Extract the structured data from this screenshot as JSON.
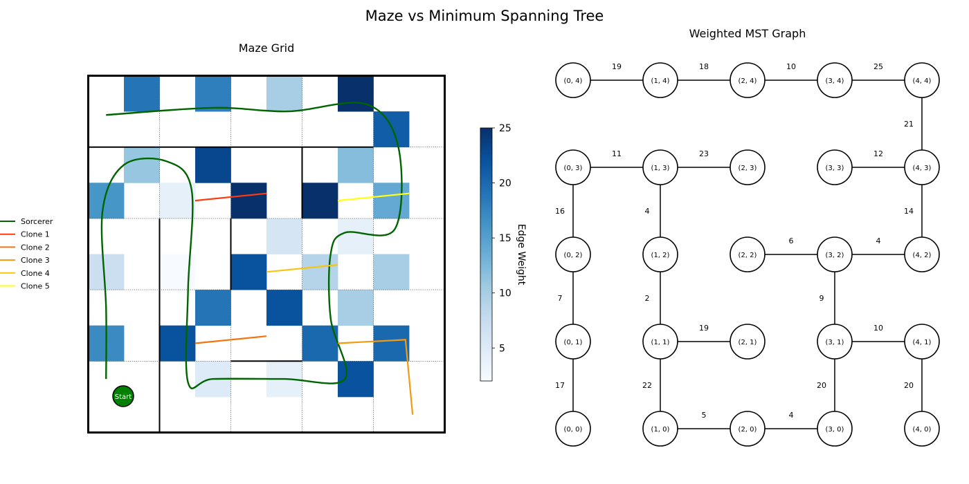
{
  "figure": {
    "title": "Maze vs Minimum Spanning Tree"
  },
  "chart_data": [
    {
      "type": "heatmap",
      "title": "Maze Grid",
      "grid_size": 10,
      "cells": [
        {
          "col": 1,
          "row": 0,
          "value": 19
        },
        {
          "col": 3,
          "row": 0,
          "value": 18
        },
        {
          "col": 5,
          "row": 0,
          "value": 10
        },
        {
          "col": 7,
          "row": 0,
          "value": 25
        },
        {
          "col": 8,
          "row": 1,
          "value": 21
        },
        {
          "col": 1,
          "row": 2,
          "value": 11
        },
        {
          "col": 3,
          "row": 2,
          "value": 23
        },
        {
          "col": 7,
          "row": 2,
          "value": 12
        },
        {
          "col": 0,
          "row": 3,
          "value": 16
        },
        {
          "col": 2,
          "row": 3,
          "value": 4
        },
        {
          "col": 4,
          "row": 3,
          "value": 25
        },
        {
          "col": 6,
          "row": 3,
          "value": 25
        },
        {
          "col": 8,
          "row": 3,
          "value": 14
        },
        {
          "col": 5,
          "row": 4,
          "value": 6
        },
        {
          "col": 7,
          "row": 4,
          "value": 4
        },
        {
          "col": 0,
          "row": 5,
          "value": 7
        },
        {
          "col": 2,
          "row": 5,
          "value": 2
        },
        {
          "col": 4,
          "row": 5,
          "value": 22
        },
        {
          "col": 6,
          "row": 5,
          "value": 9
        },
        {
          "col": 8,
          "row": 5,
          "value": 10
        },
        {
          "col": 3,
          "row": 6,
          "value": 19
        },
        {
          "col": 5,
          "row": 6,
          "value": 22
        },
        {
          "col": 7,
          "row": 6,
          "value": 10
        },
        {
          "col": 0,
          "row": 7,
          "value": 17
        },
        {
          "col": 2,
          "row": 7,
          "value": 22
        },
        {
          "col": 6,
          "row": 7,
          "value": 20
        },
        {
          "col": 8,
          "row": 7,
          "value": 20
        },
        {
          "col": 3,
          "row": 8,
          "value": 5
        },
        {
          "col": 5,
          "row": 8,
          "value": 4
        },
        {
          "col": 7,
          "row": 8,
          "value": 22
        }
      ],
      "walls": [
        [
          0,
          2,
          8,
          2
        ],
        [
          6,
          2,
          6,
          4
        ],
        [
          2,
          4,
          2,
          10
        ],
        [
          4,
          4,
          4,
          6
        ],
        [
          4,
          8,
          6,
          8
        ]
      ],
      "colorbar": {
        "label": "Edge Weight",
        "min": 2,
        "max": 25,
        "ticks": [
          5,
          10,
          15,
          20,
          25
        ]
      },
      "start_label": "Start",
      "start_cell": [
        0.5,
        8.5
      ],
      "series": [
        {
          "name": "Sorcerer",
          "color": "#006400",
          "points": [
            [
              0.5,
              1.1
            ],
            [
              3.5,
              0.9
            ],
            [
              5.6,
              1.0
            ],
            [
              7.8,
              0.8
            ],
            [
              8.7,
              2.0
            ],
            [
              8.6,
              4.3
            ],
            [
              7.2,
              4.4
            ],
            [
              6.8,
              5.0
            ],
            [
              6.8,
              6.8
            ],
            [
              7.2,
              8.5
            ],
            [
              5.5,
              8.5
            ],
            [
              3.5,
              8.5
            ],
            [
              2.8,
              8.6
            ],
            [
              2.8,
              6.0
            ],
            [
              2.9,
              3.2
            ],
            [
              2.2,
              2.4
            ],
            [
              1.0,
              2.5
            ],
            [
              0.4,
              3.8
            ],
            [
              0.5,
              6.5
            ],
            [
              0.5,
              8.5
            ]
          ]
        },
        {
          "name": "Clone 1",
          "color": "#ff3b0f",
          "points": [
            [
              3.0,
              3.5
            ],
            [
              5.0,
              3.3
            ]
          ]
        },
        {
          "name": "Clone 2",
          "color": "#f27510",
          "points": [
            [
              3.0,
              7.5
            ],
            [
              5.0,
              7.3
            ]
          ]
        },
        {
          "name": "Clone 3",
          "color": "#f29a11",
          "points": [
            [
              7.0,
              7.5
            ],
            [
              8.9,
              7.4
            ],
            [
              9.1,
              9.5
            ]
          ]
        },
        {
          "name": "Clone 4",
          "color": "#f6c50f",
          "points": [
            [
              5.0,
              5.5
            ],
            [
              7.0,
              5.3
            ]
          ]
        },
        {
          "name": "Clone 5",
          "color": "#ffff14",
          "points": [
            [
              7.0,
              3.5
            ],
            [
              9.0,
              3.3
            ]
          ]
        }
      ]
    },
    {
      "type": "graph",
      "title": "Weighted MST Graph",
      "nodes": [
        {
          "id": "0,0",
          "x": 0,
          "y": 0,
          "label": "(0, 0)"
        },
        {
          "id": "1,0",
          "x": 1,
          "y": 0,
          "label": "(1, 0)"
        },
        {
          "id": "2,0",
          "x": 2,
          "y": 0,
          "label": "(2, 0)"
        },
        {
          "id": "3,0",
          "x": 3,
          "y": 0,
          "label": "(3, 0)"
        },
        {
          "id": "4,0",
          "x": 4,
          "y": 0,
          "label": "(4, 0)"
        },
        {
          "id": "0,1",
          "x": 0,
          "y": 1,
          "label": "(0, 1)"
        },
        {
          "id": "1,1",
          "x": 1,
          "y": 1,
          "label": "(1, 1)"
        },
        {
          "id": "2,1",
          "x": 2,
          "y": 1,
          "label": "(2, 1)"
        },
        {
          "id": "3,1",
          "x": 3,
          "y": 1,
          "label": "(3, 1)"
        },
        {
          "id": "4,1",
          "x": 4,
          "y": 1,
          "label": "(4, 1)"
        },
        {
          "id": "0,2",
          "x": 0,
          "y": 2,
          "label": "(0, 2)"
        },
        {
          "id": "1,2",
          "x": 1,
          "y": 2,
          "label": "(1, 2)"
        },
        {
          "id": "2,2",
          "x": 2,
          "y": 2,
          "label": "(2, 2)"
        },
        {
          "id": "3,2",
          "x": 3,
          "y": 2,
          "label": "(3, 2)"
        },
        {
          "id": "4,2",
          "x": 4,
          "y": 2,
          "label": "(4, 2)"
        },
        {
          "id": "0,3",
          "x": 0,
          "y": 3,
          "label": "(0, 3)"
        },
        {
          "id": "1,3",
          "x": 1,
          "y": 3,
          "label": "(1, 3)"
        },
        {
          "id": "2,3",
          "x": 2,
          "y": 3,
          "label": "(2, 3)"
        },
        {
          "id": "3,3",
          "x": 3,
          "y": 3,
          "label": "(3, 3)"
        },
        {
          "id": "4,3",
          "x": 4,
          "y": 3,
          "label": "(4, 3)"
        },
        {
          "id": "0,4",
          "x": 0,
          "y": 4,
          "label": "(0, 4)"
        },
        {
          "id": "1,4",
          "x": 1,
          "y": 4,
          "label": "(1, 4)"
        },
        {
          "id": "2,4",
          "x": 2,
          "y": 4,
          "label": "(2, 4)"
        },
        {
          "id": "3,4",
          "x": 3,
          "y": 4,
          "label": "(3, 4)"
        },
        {
          "id": "4,4",
          "x": 4,
          "y": 4,
          "label": "(4, 4)"
        }
      ],
      "edges": [
        {
          "from": "0,4",
          "to": "1,4",
          "weight": 19
        },
        {
          "from": "1,4",
          "to": "2,4",
          "weight": 18
        },
        {
          "from": "2,4",
          "to": "3,4",
          "weight": 10
        },
        {
          "from": "3,4",
          "to": "4,4",
          "weight": 25
        },
        {
          "from": "4,4",
          "to": "4,3",
          "weight": 21
        },
        {
          "from": "0,3",
          "to": "1,3",
          "weight": 11
        },
        {
          "from": "1,3",
          "to": "2,3",
          "weight": 23
        },
        {
          "from": "3,3",
          "to": "4,3",
          "weight": 12
        },
        {
          "from": "0,3",
          "to": "0,2",
          "weight": 16
        },
        {
          "from": "1,3",
          "to": "1,2",
          "weight": 4
        },
        {
          "from": "4,3",
          "to": "4,2",
          "weight": 14
        },
        {
          "from": "2,2",
          "to": "3,2",
          "weight": 6
        },
        {
          "from": "3,2",
          "to": "4,2",
          "weight": 4
        },
        {
          "from": "0,2",
          "to": "0,1",
          "weight": 7
        },
        {
          "from": "1,2",
          "to": "1,1",
          "weight": 2
        },
        {
          "from": "3,2",
          "to": "3,1",
          "weight": 9
        },
        {
          "from": "1,1",
          "to": "2,1",
          "weight": 19
        },
        {
          "from": "3,1",
          "to": "4,1",
          "weight": 10
        },
        {
          "from": "0,1",
          "to": "0,0",
          "weight": 17
        },
        {
          "from": "1,1",
          "to": "1,0",
          "weight": 22
        },
        {
          "from": "3,1",
          "to": "3,0",
          "weight": 20
        },
        {
          "from": "4,1",
          "to": "4,0",
          "weight": 20
        },
        {
          "from": "1,0",
          "to": "2,0",
          "weight": 5
        },
        {
          "from": "2,0",
          "to": "3,0",
          "weight": 4
        }
      ]
    }
  ]
}
